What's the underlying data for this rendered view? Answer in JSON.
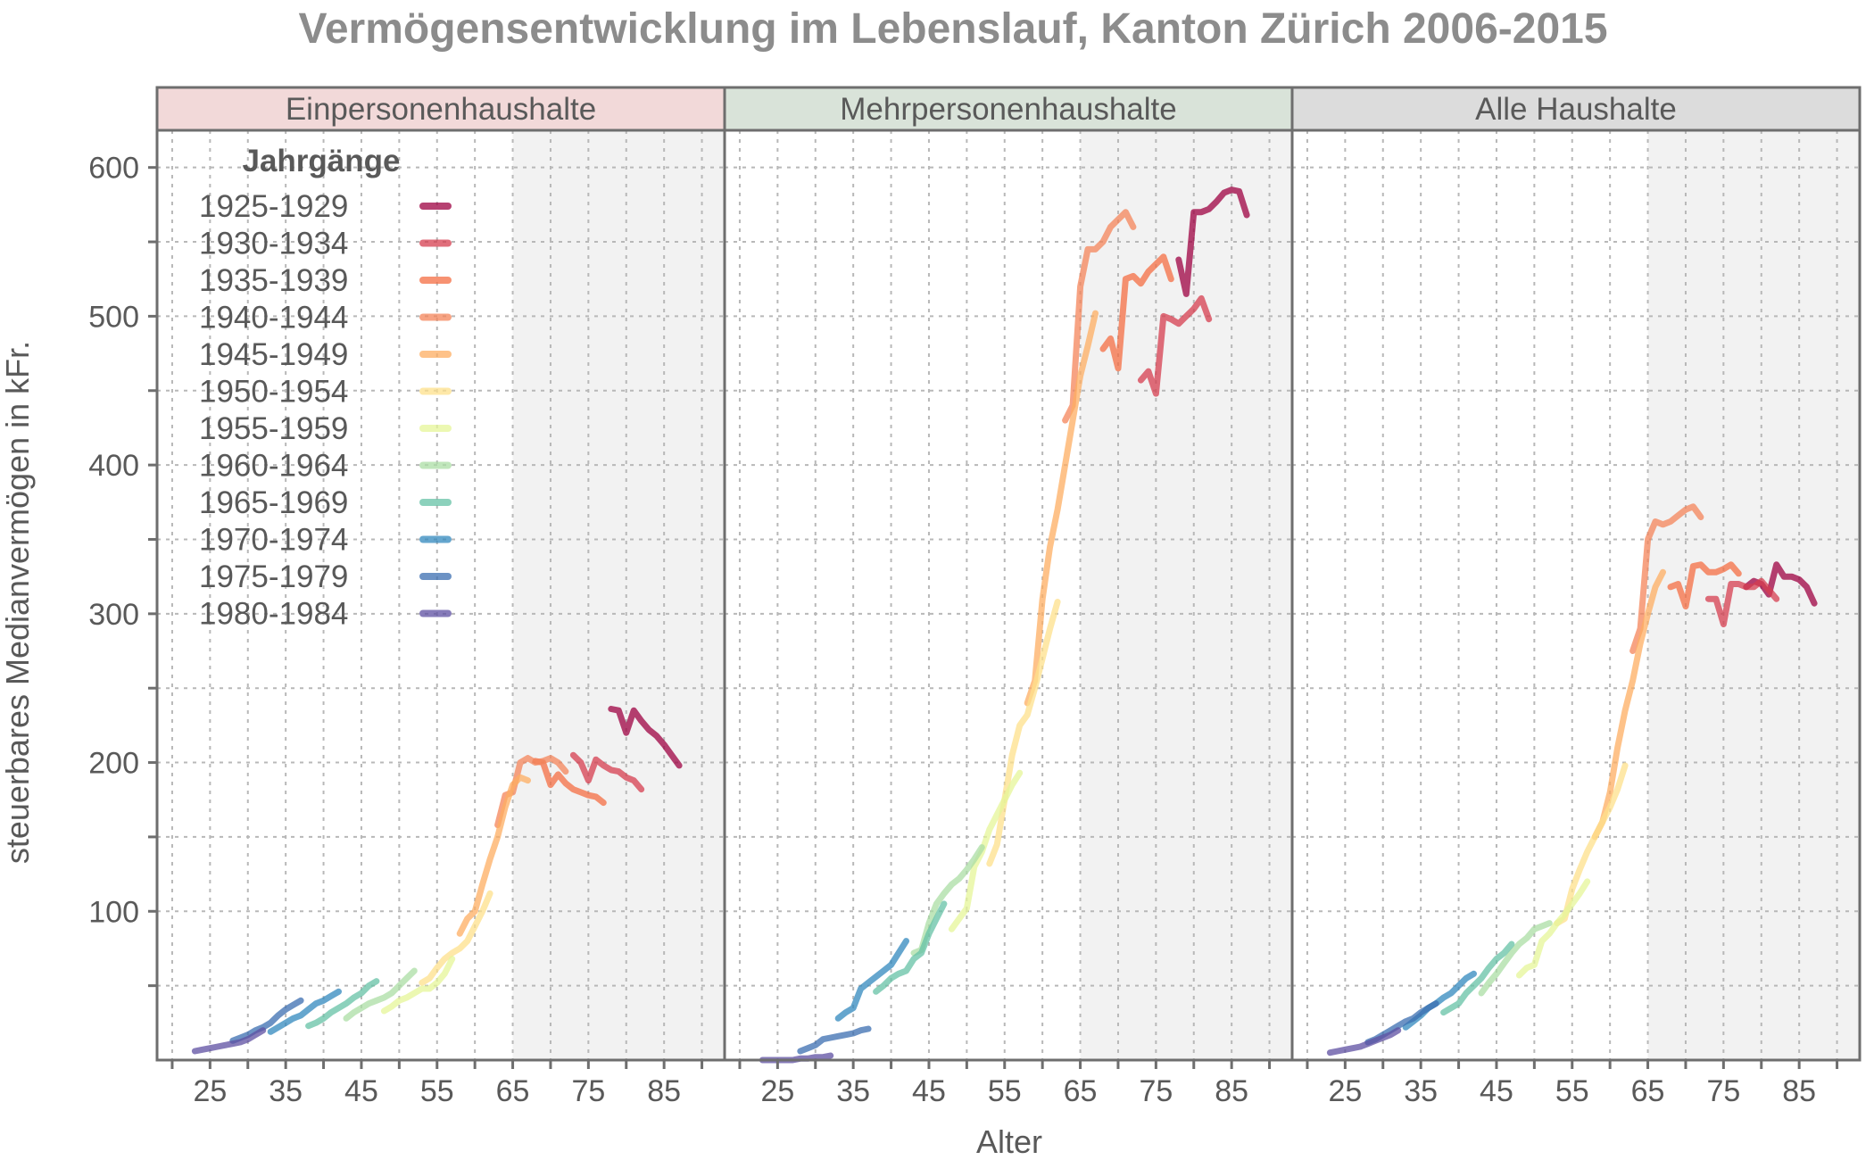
{
  "chart_data": {
    "type": "line",
    "title": "Vermögensentwicklung im Lebenslauf, Kanton Zürich 2006-2015",
    "xlabel": "Alter",
    "ylabel": "steuerbares Medianvermögen in kFr.",
    "xlim": [
      18,
      93
    ],
    "ylim": [
      0,
      625
    ],
    "xticks": [
      25,
      35,
      45,
      55,
      65,
      75,
      85
    ],
    "yticks": [
      100,
      200,
      300,
      400,
      500,
      600
    ],
    "grid": true,
    "shaded_age_from": 65,
    "legend": {
      "title": "Jahrgänge",
      "placement": "top-left"
    },
    "series_names": [
      "1925-1929",
      "1930-1934",
      "1935-1939",
      "1940-1944",
      "1945-1949",
      "1950-1954",
      "1955-1959",
      "1960-1964",
      "1965-1969",
      "1970-1974",
      "1975-1979",
      "1980-1984"
    ],
    "series_colors": [
      "#9e0142",
      "#d53e4f",
      "#f46d43",
      "#f4845a",
      "#fdae61",
      "#fee08b",
      "#e6f598",
      "#abdda4",
      "#66c2a5",
      "#3288bd",
      "#3b6eb0",
      "#5e4fa2"
    ],
    "panels": [
      {
        "name": "Einpersonenhaushalte",
        "strip_color": "#f2d9d9",
        "series": [
          {
            "name": "1925-1929",
            "x": [
              78,
              79,
              80,
              81,
              82,
              83,
              84,
              85,
              86,
              87
            ],
            "y": [
              236,
              235,
              220,
              235,
              228,
              222,
              218,
              212,
              205,
              198
            ]
          },
          {
            "name": "1930-1934",
            "x": [
              73,
              74,
              75,
              76,
              77,
              78,
              79,
              80,
              81,
              82
            ],
            "y": [
              205,
              200,
              188,
              202,
              198,
              195,
              194,
              190,
              188,
              182
            ]
          },
          {
            "name": "1935-1939",
            "x": [
              68,
              69,
              70,
              71,
              72,
              73,
              74,
              75,
              76,
              77
            ],
            "y": [
              201,
              200,
              185,
              192,
              186,
              182,
              180,
              178,
              177,
              173
            ]
          },
          {
            "name": "1940-1944",
            "x": [
              63,
              64,
              65,
              66,
              67,
              68,
              69,
              70,
              71,
              72
            ],
            "y": [
              158,
              178,
              180,
              200,
              203,
              200,
              201,
              203,
              200,
              194
            ]
          },
          {
            "name": "1945-1949",
            "x": [
              58,
              59,
              60,
              61,
              62,
              63,
              64,
              65,
              66,
              67
            ],
            "y": [
              85,
              95,
              100,
              118,
              135,
              150,
              170,
              185,
              190,
              188
            ]
          },
          {
            "name": "1950-1954",
            "x": [
              53,
              54,
              55,
              56,
              57,
              58,
              59,
              60,
              61,
              62
            ],
            "y": [
              52,
              55,
              62,
              68,
              72,
              75,
              80,
              90,
              100,
              112
            ]
          },
          {
            "name": "1955-1959",
            "x": [
              48,
              49,
              50,
              51,
              52,
              53,
              54,
              55,
              56,
              57
            ],
            "y": [
              33,
              36,
              40,
              42,
              45,
              48,
              48,
              52,
              58,
              68
            ]
          },
          {
            "name": "1960-1964",
            "x": [
              43,
              44,
              45,
              46,
              47,
              48,
              49,
              50,
              51,
              52
            ],
            "y": [
              28,
              32,
              35,
              38,
              40,
              42,
              45,
              50,
              55,
              60
            ]
          },
          {
            "name": "1965-1969",
            "x": [
              38,
              39,
              40,
              41,
              42,
              43,
              44,
              45,
              46,
              47
            ],
            "y": [
              23,
              25,
              28,
              32,
              35,
              38,
              42,
              45,
              50,
              53
            ]
          },
          {
            "name": "1970-1974",
            "x": [
              33,
              34,
              35,
              36,
              37,
              38,
              39,
              40,
              41,
              42
            ],
            "y": [
              19,
              22,
              25,
              28,
              30,
              34,
              38,
              40,
              43,
              46
            ]
          },
          {
            "name": "1975-1979",
            "x": [
              28,
              29,
              30,
              31,
              32,
              33,
              34,
              35,
              36,
              37
            ],
            "y": [
              13,
              15,
              17,
              20,
              22,
              25,
              30,
              34,
              37,
              40
            ]
          },
          {
            "name": "1980-1984",
            "x": [
              23,
              24,
              25,
              26,
              27,
              28,
              29,
              30,
              31,
              32
            ],
            "y": [
              6,
              7,
              8,
              9,
              10,
              11,
              12,
              14,
              17,
              20
            ]
          }
        ]
      },
      {
        "name": "Mehrpersonenhaushalte",
        "strip_color": "#d9e3d9",
        "series": [
          {
            "name": "1925-1929",
            "x": [
              78,
              79,
              80,
              81,
              82,
              83,
              84,
              85,
              86,
              87
            ],
            "y": [
              538,
              515,
              570,
              570,
              572,
              577,
              583,
              585,
              584,
              568
            ]
          },
          {
            "name": "1930-1934",
            "x": [
              73,
              74,
              75,
              76,
              77,
              78,
              79,
              80,
              81,
              82
            ],
            "y": [
              457,
              463,
              448,
              500,
              498,
              495,
              500,
              505,
              512,
              498
            ]
          },
          {
            "name": "1935-1939",
            "x": [
              68,
              69,
              70,
              71,
              72,
              73,
              74,
              75,
              76,
              77
            ],
            "y": [
              478,
              485,
              465,
              525,
              527,
              522,
              530,
              535,
              540,
              525
            ]
          },
          {
            "name": "1940-1944",
            "x": [
              63,
              64,
              65,
              66,
              67,
              68,
              69,
              70,
              71,
              72
            ],
            "y": [
              430,
              440,
              520,
              545,
              545,
              550,
              560,
              565,
              570,
              560
            ]
          },
          {
            "name": "1945-1949",
            "x": [
              58,
              59,
              60,
              61,
              62,
              63,
              64,
              65,
              66,
              67
            ],
            "y": [
              240,
              255,
              310,
              345,
              370,
              400,
              430,
              460,
              480,
              502
            ]
          },
          {
            "name": "1950-1954",
            "x": [
              53,
              54,
              55,
              56,
              57,
              58,
              59,
              60,
              61,
              62
            ],
            "y": [
              132,
              145,
              175,
              205,
              225,
              232,
              250,
              270,
              290,
              308
            ]
          },
          {
            "name": "1955-1959",
            "x": [
              48,
              49,
              50,
              51,
              52,
              53,
              54,
              55,
              56,
              57
            ],
            "y": [
              88,
              95,
              102,
              130,
              140,
              155,
              165,
              175,
              185,
              193
            ]
          },
          {
            "name": "1960-1964",
            "x": [
              43,
              44,
              45,
              46,
              47,
              48,
              49,
              50,
              51,
              52
            ],
            "y": [
              72,
              74,
              92,
              105,
              112,
              118,
              122,
              128,
              135,
              143
            ]
          },
          {
            "name": "1965-1969",
            "x": [
              38,
              39,
              40,
              41,
              42,
              43,
              44,
              45,
              46,
              47
            ],
            "y": [
              46,
              50,
              55,
              58,
              60,
              68,
              72,
              85,
              95,
              105
            ]
          },
          {
            "name": "1970-1974",
            "x": [
              33,
              34,
              35,
              36,
              37,
              38,
              39,
              40,
              41,
              42
            ],
            "y": [
              28,
              32,
              35,
              48,
              52,
              56,
              60,
              64,
              72,
              80
            ]
          },
          {
            "name": "1975-1979",
            "x": [
              28,
              29,
              30,
              31,
              32,
              33,
              34,
              35,
              36,
              37
            ],
            "y": [
              6,
              8,
              10,
              14,
              15,
              16,
              17,
              18,
              20,
              21
            ]
          },
          {
            "name": "1980-1984",
            "x": [
              23,
              24,
              25,
              26,
              27,
              28,
              29,
              30,
              31,
              32
            ],
            "y": [
              0,
              0,
              0,
              0,
              0,
              1,
              1,
              2,
              2,
              3
            ]
          }
        ]
      },
      {
        "name": "Alle Haushalte",
        "strip_color": "#dcdcdc",
        "series": [
          {
            "name": "1925-1929",
            "x": [
              78,
              79,
              80,
              81,
              82,
              83,
              84,
              85,
              86,
              87
            ],
            "y": [
              318,
              322,
              320,
              313,
              333,
              325,
              325,
              323,
              318,
              307
            ]
          },
          {
            "name": "1930-1934",
            "x": [
              73,
              74,
              75,
              76,
              77,
              78,
              79,
              80,
              81,
              82
            ],
            "y": [
              310,
              310,
              293,
              320,
              320,
              318,
              318,
              322,
              316,
              310
            ]
          },
          {
            "name": "1935-1939",
            "x": [
              68,
              69,
              70,
              71,
              72,
              73,
              74,
              75,
              76,
              77
            ],
            "y": [
              318,
              320,
              305,
              332,
              333,
              328,
              328,
              330,
              333,
              327
            ]
          },
          {
            "name": "1940-1944",
            "x": [
              63,
              64,
              65,
              66,
              67,
              68,
              69,
              70,
              71,
              72
            ],
            "y": [
              275,
              290,
              350,
              362,
              360,
              362,
              366,
              370,
              372,
              365
            ]
          },
          {
            "name": "1945-1949",
            "x": [
              58,
              59,
              60,
              61,
              62,
              63,
              64,
              65,
              66,
              67
            ],
            "y": [
              150,
              160,
              180,
              210,
              235,
              255,
              280,
              300,
              318,
              328
            ]
          },
          {
            "name": "1950-1954",
            "x": [
              53,
              54,
              55,
              56,
              57,
              58,
              59,
              60,
              61,
              62
            ],
            "y": [
              92,
              95,
              115,
              128,
              140,
              150,
              160,
              170,
              182,
              198
            ]
          },
          {
            "name": "1955-1959",
            "x": [
              48,
              49,
              50,
              51,
              52,
              53,
              54,
              55,
              56,
              57
            ],
            "y": [
              57,
              62,
              64,
              80,
              85,
              92,
              98,
              105,
              112,
              120
            ]
          },
          {
            "name": "1960-1964",
            "x": [
              43,
              44,
              45,
              46,
              47,
              48,
              49,
              50,
              51,
              52
            ],
            "y": [
              45,
              52,
              58,
              65,
              72,
              78,
              82,
              88,
              90,
              92
            ]
          },
          {
            "name": "1965-1969",
            "x": [
              38,
              39,
              40,
              41,
              42,
              43,
              44,
              45,
              46,
              47
            ],
            "y": [
              32,
              35,
              38,
              45,
              50,
              55,
              62,
              68,
              72,
              78
            ]
          },
          {
            "name": "1970-1974",
            "x": [
              33,
              34,
              35,
              36,
              37,
              38,
              39,
              40,
              41,
              42
            ],
            "y": [
              22,
              26,
              30,
              35,
              38,
              42,
              45,
              50,
              55,
              58
            ]
          },
          {
            "name": "1975-1979",
            "x": [
              28,
              29,
              30,
              31,
              32,
              33,
              34,
              35,
              36,
              37
            ],
            "y": [
              12,
              14,
              17,
              20,
              23,
              26,
              28,
              32,
              35,
              38
            ]
          },
          {
            "name": "1980-1984",
            "x": [
              23,
              24,
              25,
              26,
              27,
              28,
              29,
              30,
              31,
              32
            ],
            "y": [
              5,
              6,
              7,
              8,
              9,
              11,
              13,
              15,
              17,
              20
            ]
          }
        ]
      }
    ]
  }
}
